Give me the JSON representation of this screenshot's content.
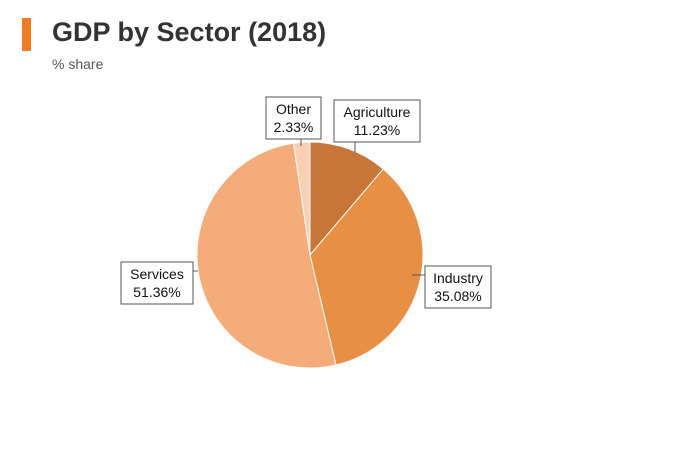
{
  "header": {
    "title": "GDP by Sector (2018)",
    "subtitle": "% share",
    "accent_color": "#f47b20"
  },
  "chart_data": {
    "type": "pie",
    "title": "GDP by Sector (2018)",
    "subtitle": "% share",
    "slices": [
      {
        "label": "Agriculture",
        "value": 11.23,
        "value_label": "11.23%",
        "color": "#c87637"
      },
      {
        "label": "Industry",
        "value": 35.08,
        "value_label": "35.08%",
        "color": "#e98f44"
      },
      {
        "label": "Services",
        "value": 51.36,
        "value_label": "51.36%",
        "color": "#f6ac78"
      },
      {
        "label": "Other",
        "value": 2.33,
        "value_label": "2.33%",
        "color": "#fbcfb3"
      }
    ],
    "start": "12 o'clock",
    "direction": "clockwise",
    "legend": "none"
  }
}
